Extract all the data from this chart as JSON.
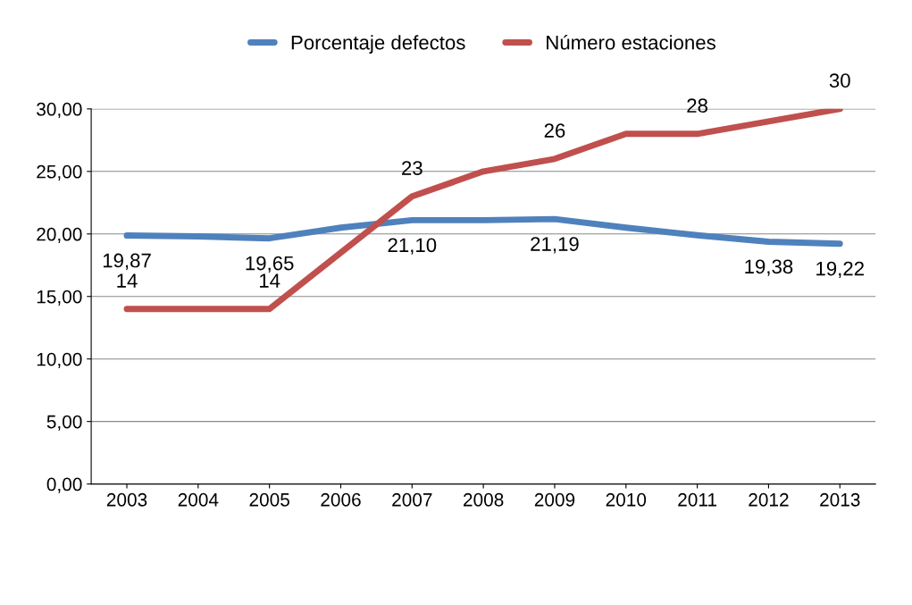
{
  "chart_data": {
    "type": "line",
    "categories": [
      "2003",
      "2004",
      "2005",
      "2006",
      "2007",
      "2008",
      "2009",
      "2010",
      "2011",
      "2012",
      "2013"
    ],
    "series": [
      {
        "name": "Porcentaje defectos",
        "color": "#4f81bd",
        "values": [
          19.87,
          19.8,
          19.65,
          20.5,
          21.1,
          21.1,
          21.19,
          20.5,
          19.9,
          19.38,
          19.22
        ],
        "value_labels": [
          "19,87",
          null,
          "19,65",
          null,
          "21,10",
          null,
          "21,19",
          null,
          null,
          "19,38",
          "19,22"
        ]
      },
      {
        "name": "Número estaciones",
        "color": "#c0504d",
        "values": [
          14,
          14,
          14,
          18.5,
          23,
          25,
          26,
          28,
          28,
          29,
          30
        ],
        "value_labels": [
          "14",
          null,
          "14",
          null,
          "23",
          null,
          "26",
          null,
          "28",
          null,
          "30"
        ]
      }
    ],
    "ylim": [
      0,
      30
    ],
    "yticks": [
      {
        "value": 0,
        "label": "0,00"
      },
      {
        "value": 5,
        "label": "5,00"
      },
      {
        "value": 10,
        "label": "10,00"
      },
      {
        "value": 15,
        "label": "15,00"
      },
      {
        "value": 20,
        "label": "20,00"
      },
      {
        "value": 25,
        "label": "25,00"
      },
      {
        "value": 30,
        "label": "30,00"
      }
    ],
    "grid": "y",
    "legend": "top",
    "marker": "none",
    "line_style": "solid"
  }
}
